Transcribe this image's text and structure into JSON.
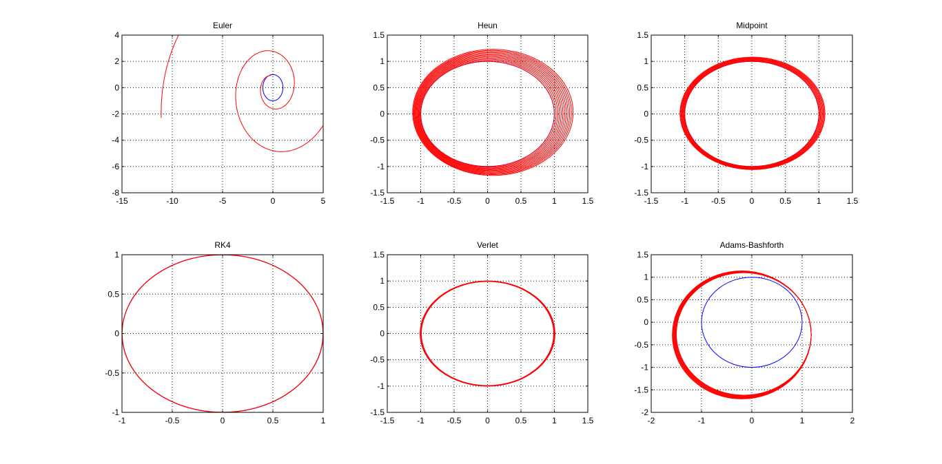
{
  "figure": {
    "background": "#ffffff",
    "colors": {
      "reference": "#0000ff",
      "numerical": "#ff0000",
      "axis": "#000000",
      "grid": "#000000"
    }
  },
  "chart_data": [
    {
      "type": "line",
      "title": "Euler",
      "xlabel": "",
      "ylabel": "",
      "xlim": [
        -15,
        5
      ],
      "ylim": [
        -8,
        4
      ],
      "xticks": [
        -15,
        -10,
        -5,
        0,
        5
      ],
      "yticks": [
        -8,
        -6,
        -4,
        -2,
        0,
        2,
        4
      ],
      "xtick_labels": [
        "-15",
        "-10",
        "-5",
        "0",
        "5"
      ],
      "ytick_labels": [
        "-8",
        "-6",
        "-4",
        "-2",
        "0",
        "2",
        "4"
      ],
      "grid": true,
      "series": [
        {
          "color": "#0000ff",
          "kind": "circle",
          "center": [
            0,
            0
          ],
          "rx": 1,
          "ry": 1
        },
        {
          "color": "#ff0000",
          "kind": "growing-spiral",
          "start": [
            1,
            0
          ],
          "end": [
            -11.1,
            -2.3
          ],
          "turns": 2.25,
          "growth_per_turn": 3.0
        }
      ]
    },
    {
      "type": "line",
      "title": "Heun",
      "xlabel": "",
      "ylabel": "",
      "xlim": [
        -1.5,
        1.5
      ],
      "ylim": [
        -1.5,
        1.5
      ],
      "xticks": [
        -1.5,
        -1,
        -0.5,
        0,
        0.5,
        1,
        1.5
      ],
      "yticks": [
        -1.5,
        -1,
        -0.5,
        0,
        0.5,
        1,
        1.5
      ],
      "xtick_labels": [
        "-1.5",
        "-1",
        "-0.5",
        "0",
        "0.5",
        "1",
        "1.5"
      ],
      "ytick_labels": [
        "-1.5",
        "-1",
        "-0.5",
        "0",
        "0.5",
        "1",
        "1.5"
      ],
      "grid": true,
      "series": [
        {
          "color": "#0000ff",
          "kind": "circle",
          "center": [
            0,
            0
          ],
          "rx": 1,
          "ry": 1
        },
        {
          "color": "#ff0000",
          "kind": "ellipse-band",
          "count": 12,
          "cx": [
            0,
            0.08
          ],
          "cy": [
            0,
            0.03
          ],
          "rx": [
            1.0,
            1.2
          ],
          "ry": [
            1.0,
            1.2
          ]
        }
      ]
    },
    {
      "type": "line",
      "title": "Midpoint",
      "xlabel": "",
      "ylabel": "",
      "xlim": [
        -1.5,
        1.5
      ],
      "ylim": [
        -1.5,
        1.5
      ],
      "xticks": [
        -1.5,
        -1,
        -0.5,
        0,
        0.5,
        1,
        1.5
      ],
      "yticks": [
        -1.5,
        -1,
        -0.5,
        0,
        0.5,
        1,
        1.5
      ],
      "xtick_labels": [
        "-1.5",
        "-1",
        "-0.5",
        "0",
        "0.5",
        "1",
        "1.5"
      ],
      "ytick_labels": [
        "-1.5",
        "-1",
        "-0.5",
        "0",
        "0.5",
        "1",
        "1.5"
      ],
      "grid": true,
      "series": [
        {
          "color": "#0000ff",
          "kind": "circle",
          "center": [
            0,
            0
          ],
          "rx": 1,
          "ry": 1
        },
        {
          "color": "#ff0000",
          "kind": "ellipse-band",
          "count": 8,
          "cx": [
            0,
            0.01
          ],
          "cy": [
            0,
            0.01
          ],
          "rx": [
            1.0,
            1.08
          ],
          "ry": [
            1.0,
            1.07
          ]
        }
      ]
    },
    {
      "type": "line",
      "title": "RK4",
      "xlabel": "",
      "ylabel": "",
      "xlim": [
        -1,
        1
      ],
      "ylim": [
        -1,
        1
      ],
      "xticks": [
        -1,
        -0.5,
        0,
        0.5,
        1
      ],
      "yticks": [
        -1,
        -0.5,
        0,
        0.5,
        1
      ],
      "xtick_labels": [
        "-1",
        "-0.5",
        "0",
        "0.5",
        "1"
      ],
      "ytick_labels": [
        "-1",
        "-0.5",
        "0",
        "0.5",
        "1"
      ],
      "grid": true,
      "series": [
        {
          "color": "#0000ff",
          "kind": "circle",
          "center": [
            0,
            0
          ],
          "rx": 1,
          "ry": 1
        },
        {
          "color": "#ff0000",
          "kind": "ellipse-band",
          "count": 2,
          "cx": [
            0,
            0
          ],
          "cy": [
            0,
            0
          ],
          "rx": [
            0.998,
            1.0
          ],
          "ry": [
            0.998,
            1.0
          ]
        }
      ]
    },
    {
      "type": "line",
      "title": "Verlet",
      "xlabel": "",
      "ylabel": "",
      "xlim": [
        -1.5,
        1.5
      ],
      "ylim": [
        -1.5,
        1.5
      ],
      "xticks": [
        -1.5,
        -1,
        -0.5,
        0,
        0.5,
        1,
        1.5
      ],
      "yticks": [
        -1.5,
        -1,
        -0.5,
        0,
        0.5,
        1,
        1.5
      ],
      "xtick_labels": [
        "-1.5",
        "-1",
        "-0.5",
        "0",
        "0.5",
        "1",
        "1.5"
      ],
      "ytick_labels": [
        "-1.5",
        "-1",
        "-0.5",
        "0",
        "0.5",
        "1",
        "1.5"
      ],
      "grid": true,
      "series": [
        {
          "color": "#0000ff",
          "kind": "circle",
          "center": [
            0,
            0
          ],
          "rx": 1,
          "ry": 1
        },
        {
          "color": "#ff0000",
          "kind": "ellipse-band",
          "count": 3,
          "cx": [
            0,
            0
          ],
          "cy": [
            0,
            0
          ],
          "rx": [
            0.99,
            1.01
          ],
          "ry": [
            0.99,
            1.0
          ]
        }
      ]
    },
    {
      "type": "line",
      "title": "Adams-Bashforth",
      "xlabel": "",
      "ylabel": "",
      "xlim": [
        -2,
        2
      ],
      "ylim": [
        -2,
        1.5
      ],
      "xticks": [
        -2,
        -1,
        0,
        1,
        2
      ],
      "yticks": [
        -2,
        -1.5,
        -1,
        -0.5,
        0,
        0.5,
        1,
        1.5
      ],
      "xtick_labels": [
        "-2",
        "-1",
        "0",
        "1",
        "2"
      ],
      "ytick_labels": [
        "-2",
        "-1.5",
        "-1",
        "-0.5",
        "0",
        "0.5",
        "1",
        "1.5"
      ],
      "grid": true,
      "series": [
        {
          "color": "#0000ff",
          "kind": "circle",
          "center": [
            0,
            0
          ],
          "rx": 1,
          "ry": 1
        },
        {
          "color": "#ff0000",
          "kind": "ellipse-band",
          "count": 8,
          "cx": [
            -0.16,
            -0.2
          ],
          "cy": [
            -0.26,
            -0.28
          ],
          "rx": [
            1.34,
            1.38
          ],
          "ry": [
            1.36,
            1.42
          ]
        }
      ]
    }
  ]
}
